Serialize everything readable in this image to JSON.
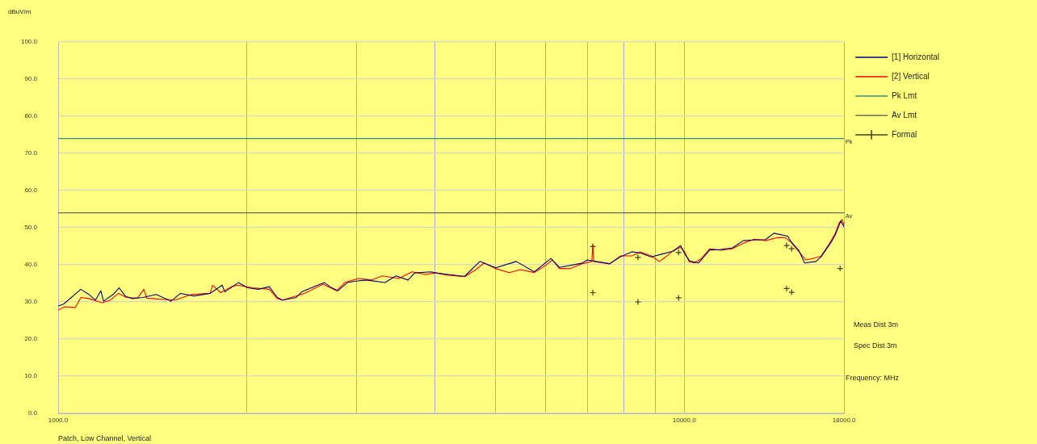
{
  "chart_data": {
    "type": "line",
    "xlabel": "Frequency: MHz",
    "ylabel": "dBuV/m",
    "annotations": [
      {
        "text": "Pk",
        "x": 18000,
        "y": 74
      },
      {
        "text": "Av",
        "x": 18000,
        "y": 54
      },
      "Meas Dist 3m",
      "Spec Dist 3m",
      "Patch, Low Channel, Vertical"
    ],
    "log": "x",
    "xlim": [
      1000,
      18000
    ],
    "xticks": [
      {
        "value": 1000,
        "label": "1000.0"
      },
      {
        "value": 2000,
        "label": null
      },
      {
        "value": 3000,
        "label": null
      },
      {
        "value": 4000,
        "label": null
      },
      {
        "value": 5000,
        "label": null
      },
      {
        "value": 6000,
        "label": null
      },
      {
        "value": 7000,
        "label": null
      },
      {
        "value": 8000,
        "label": null
      },
      {
        "value": 9000,
        "label": null
      },
      {
        "value": 10000,
        "label": "10000.0"
      },
      {
        "value": 18000,
        "label": "18000.0"
      }
    ],
    "ylim": [
      0,
      100
    ],
    "yticks": [
      {
        "value": 0,
        "label": "0.0"
      },
      {
        "value": 10,
        "label": "10.0"
      },
      {
        "value": 20,
        "label": "20.0"
      },
      {
        "value": 30,
        "label": "30.0"
      },
      {
        "value": 40,
        "label": "40.0"
      },
      {
        "value": 50,
        "label": "50.0"
      },
      {
        "value": 60,
        "label": "60.0"
      },
      {
        "value": 70,
        "label": "70.0"
      },
      {
        "value": 80,
        "label": "80.0"
      },
      {
        "value": 90,
        "label": "90.0"
      },
      {
        "value": 100,
        "label": "100.0"
      }
    ],
    "grid": true,
    "legend": "top right",
    "marker": "none",
    "line_style": "solid",
    "series": [
      {
        "name": "[1] Horizontal",
        "color": "#000080",
        "x": [
          1000,
          1020,
          1087,
          1120,
          1147,
          1170,
          1182,
          1224,
          1251,
          1280,
          1311,
          1365,
          1434,
          1514,
          1568,
          1648,
          1748,
          1828,
          1846,
          1940,
          2008,
          2089,
          2174,
          2239,
          2284,
          2401,
          2448,
          2597,
          2663,
          2716,
          2798,
          2897,
          2984,
          3105,
          3328,
          3463,
          3621,
          3711,
          3938,
          4017,
          4194,
          4460,
          4716,
          5000,
          5391,
          5762,
          6125,
          6318,
          6858,
          7001,
          7598,
          7916,
          8247,
          8502,
          8857,
          9171,
          9616,
          9864,
          10018,
          10200,
          10543,
          10984,
          11444,
          11924,
          12425,
          12942,
          13485,
          13908,
          14629,
          14786,
          15251,
          15572,
          16235,
          16554,
          17226,
          17422,
          17783,
          18000
        ],
        "values": [
          28.9,
          29.4,
          33.4,
          32.0,
          30.5,
          33.0,
          30.2,
          32.0,
          33.8,
          31.6,
          30.9,
          31.2,
          32.0,
          30.2,
          32.3,
          31.6,
          32.3,
          34.5,
          32.7,
          35.2,
          33.8,
          33.4,
          34.1,
          31.2,
          30.5,
          31.2,
          32.7,
          34.5,
          35.2,
          34.1,
          33.0,
          35.2,
          35.6,
          35.9,
          35.2,
          37.0,
          35.9,
          37.8,
          38.1,
          37.8,
          37.4,
          36.9,
          40.9,
          39.2,
          40.9,
          38.1,
          41.7,
          39.3,
          40.4,
          41.3,
          40.3,
          42.2,
          43.5,
          43.2,
          42.1,
          42.8,
          43.7,
          45.2,
          43.0,
          41.0,
          40.5,
          44.0,
          44.1,
          44.5,
          46.5,
          46.7,
          46.8,
          48.5,
          47.7,
          46.4,
          43.8,
          40.5,
          40.9,
          42.2,
          46.5,
          48.0,
          51.8,
          50.2
        ]
      },
      {
        "name": "[2] Vertical",
        "color": "#ff0000",
        "x": [
          1000,
          1024,
          1065,
          1087,
          1120,
          1153,
          1176,
          1212,
          1248,
          1286,
          1338,
          1371,
          1385,
          1463,
          1537,
          1632,
          1748,
          1765,
          1818,
          1892,
          1930,
          2048,
          2174,
          2239,
          2284,
          2473,
          2650,
          2785,
          2870,
          3013,
          3167,
          3295,
          3497,
          3675,
          3862,
          4017,
          4194,
          4460,
          4646,
          4791,
          4993,
          5253,
          5473,
          5762,
          6003,
          6158,
          6318,
          6582,
          6858,
          7120,
          7145,
          7170,
          7598,
          7916,
          8247,
          8502,
          8857,
          9132,
          9319,
          9616,
          9864,
          10018,
          10174,
          10384,
          10653,
          10984,
          11444,
          11924,
          12425,
          12942,
          13485,
          14049,
          14486,
          14786,
          15251,
          15646,
          16051,
          16554,
          17069,
          17422,
          17693,
          17873,
          18000
        ],
        "values": [
          27.8,
          28.7,
          28.5,
          31.2,
          30.9,
          30.2,
          29.8,
          30.5,
          32.3,
          31.2,
          31.0,
          33.4,
          31.0,
          30.7,
          30.5,
          32.0,
          32.3,
          34.5,
          32.5,
          34.1,
          34.5,
          33.8,
          33.4,
          30.9,
          30.5,
          32.3,
          34.8,
          33.0,
          35.2,
          36.3,
          35.9,
          37.0,
          36.3,
          38.1,
          37.4,
          37.8,
          37.2,
          36.8,
          38.7,
          40.5,
          39.0,
          37.9,
          38.7,
          37.9,
          39.8,
          41.3,
          39.0,
          39.0,
          40.2,
          40.9,
          45.4,
          40.9,
          40.2,
          42.4,
          42.4,
          43.5,
          42.4,
          40.9,
          42.0,
          43.9,
          44.7,
          43.5,
          40.9,
          40.5,
          41.7,
          44.3,
          43.9,
          44.3,
          45.8,
          46.9,
          46.5,
          47.3,
          47.3,
          46.2,
          43.5,
          41.3,
          41.7,
          42.4,
          45.8,
          48.4,
          51.4,
          52.2,
          50.7
        ]
      },
      {
        "name": "Pk Lmt",
        "color": "#3a8f7a",
        "x": [
          1000,
          18000
        ],
        "values": [
          74,
          74
        ]
      },
      {
        "name": "Av Lmt",
        "color": "#6b6b5a",
        "x": [
          1000,
          18000
        ],
        "values": [
          54,
          54
        ]
      },
      {
        "name": "Formal",
        "type": "scatter",
        "marker": "cross",
        "color": "#404020",
        "x": [
          7145,
          7145,
          8435,
          8435,
          9796,
          9796,
          14574,
          14574,
          14846,
          14846,
          17742
        ],
        "values": [
          44.9,
          32.5,
          42.0,
          30.0,
          43.3,
          31.1,
          45.2,
          33.6,
          44.3,
          32.6,
          39.0
        ]
      }
    ]
  }
}
